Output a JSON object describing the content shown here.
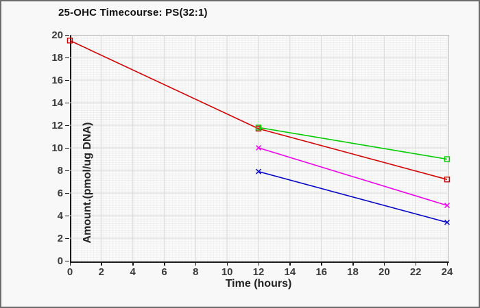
{
  "window": {
    "background_color": "#f8f8f8",
    "border_color": "#6b6b6b"
  },
  "chart_data": {
    "type": "line",
    "title": "25-OHC Timecourse: PS(32:1)",
    "xlabel": "Time (hours)",
    "ylabel": "Amount.(pmol/ug DNA)",
    "xlim": [
      0,
      24
    ],
    "ylim": [
      0,
      20
    ],
    "x_ticks": [
      0,
      2,
      4,
      6,
      8,
      10,
      12,
      14,
      16,
      18,
      20,
      22,
      24
    ],
    "y_ticks": [
      0,
      2,
      4,
      6,
      8,
      10,
      12,
      14,
      16,
      18,
      20
    ],
    "grid": "major and fine minor grid, light gray, on",
    "legend": "none",
    "major_grid_color": "#d9d9d9",
    "plot_bg_color": "#fbfbfb",
    "series": [
      {
        "name": "red-squares",
        "color": "#d40000",
        "marker": "square",
        "x": [
          0,
          12,
          24
        ],
        "values": [
          19.5,
          11.7,
          7.2
        ]
      },
      {
        "name": "green-squares",
        "color": "#00cc00",
        "marker": "square",
        "x": [
          12,
          24
        ],
        "values": [
          11.8,
          9.0
        ]
      },
      {
        "name": "magenta-x",
        "color": "#ee00ee",
        "marker": "x",
        "x": [
          12,
          24
        ],
        "values": [
          10.0,
          4.9
        ]
      },
      {
        "name": "blue-x",
        "color": "#0000c8",
        "marker": "x",
        "x": [
          12,
          24
        ],
        "values": [
          7.9,
          3.4
        ]
      }
    ]
  }
}
